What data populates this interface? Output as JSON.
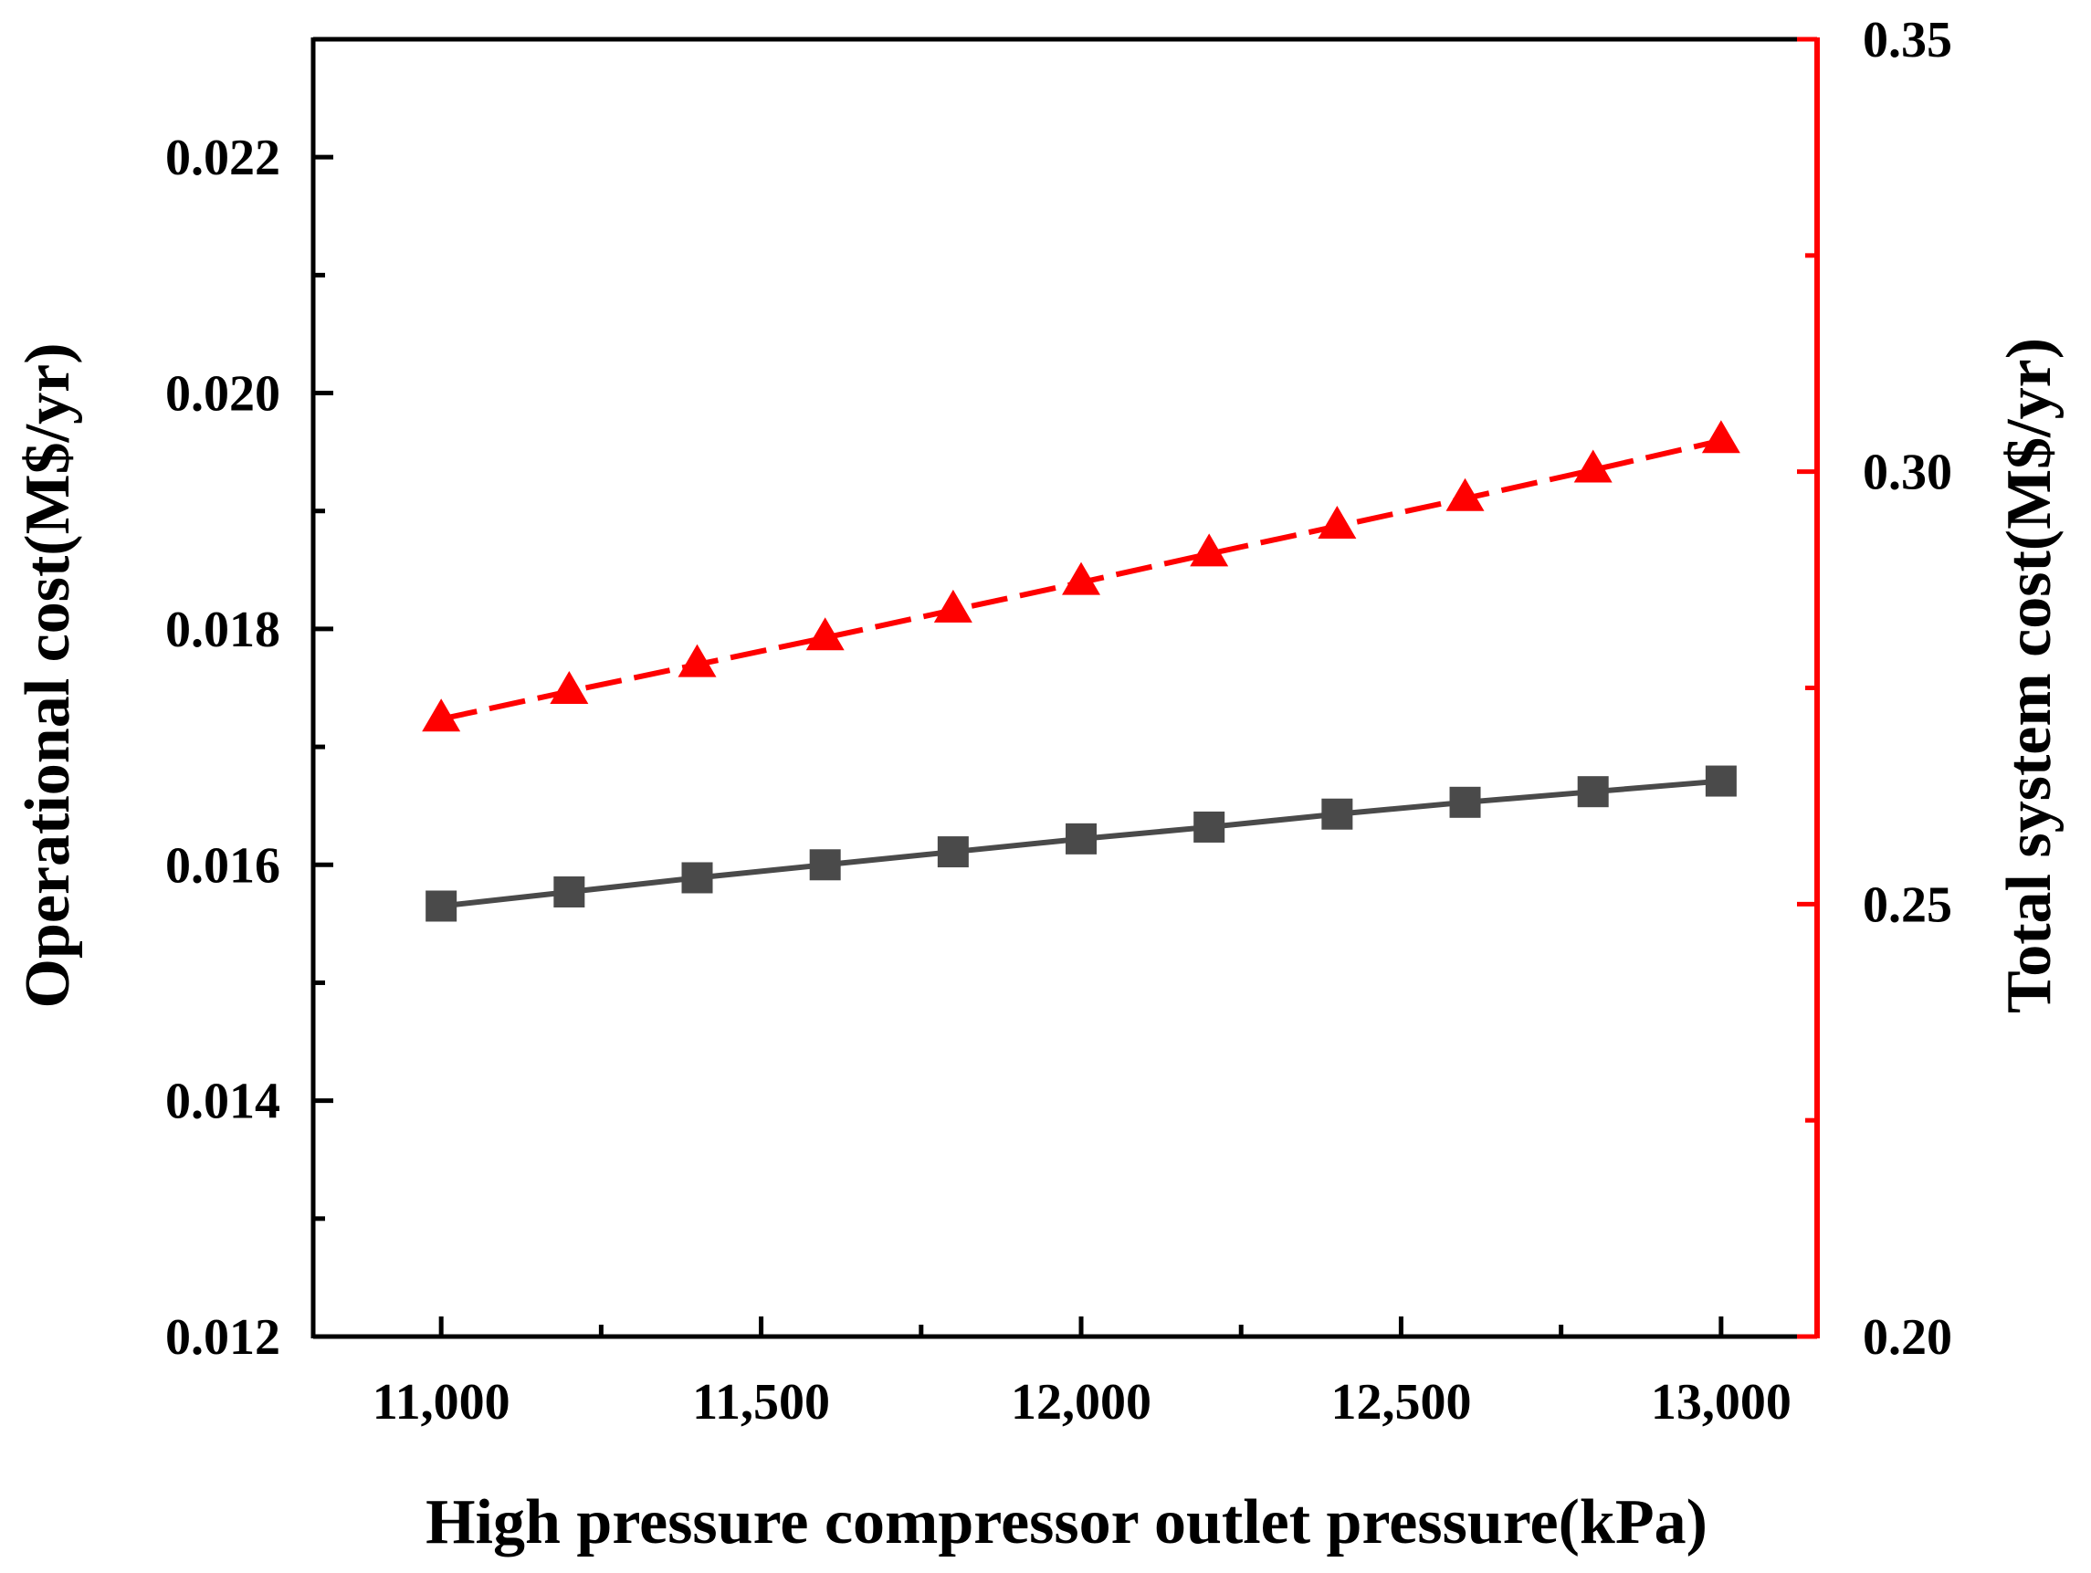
{
  "chart_data": {
    "type": "line",
    "title": "",
    "xlabel": "High pressure compressor outlet pressure(kPa)",
    "ylabel": "Operational cost(M$/yr)",
    "y2label": "Total system cost(M$/yr)",
    "xlim": [
      10800,
      13150
    ],
    "ylim": [
      0.012,
      0.023
    ],
    "y2lim": [
      0.2,
      0.35
    ],
    "x": [
      11000,
      11200,
      11400,
      11600,
      11800,
      12000,
      12200,
      12400,
      12600,
      12800,
      13000
    ],
    "x_ticks": [
      11000,
      11500,
      12000,
      12500,
      13000
    ],
    "x_tick_labels": [
      "11,000",
      "11,500",
      "12,000",
      "12,500",
      "13,000"
    ],
    "y_ticks": [
      0.012,
      0.014,
      0.016,
      0.018,
      0.02,
      0.022
    ],
    "y_tick_labels": [
      "0.012",
      "0.014",
      "0.016",
      "0.018",
      "0.020",
      "0.022"
    ],
    "y2_ticks": [
      0.2,
      0.25,
      0.3,
      0.35
    ],
    "y2_tick_labels": [
      "0.20",
      "0.25",
      "0.30",
      "0.35"
    ],
    "grid": false,
    "legend": "none",
    "series": [
      {
        "name": "Operational cost",
        "axis": "left",
        "color": "#4a4a4a",
        "marker": "square",
        "line_style": "solid",
        "values": [
          0.01565,
          0.01577,
          0.01589,
          0.016,
          0.01611,
          0.01622,
          0.01632,
          0.01643,
          0.01653,
          0.01662,
          0.01671
        ]
      },
      {
        "name": "Total system cost",
        "axis": "right",
        "color": "#ff0000",
        "marker": "triangle",
        "line_style": "dashed",
        "values": [
          0.2714,
          0.2746,
          0.2777,
          0.2808,
          0.284,
          0.2872,
          0.2905,
          0.2937,
          0.2969,
          0.3002,
          0.3036
        ]
      }
    ]
  }
}
